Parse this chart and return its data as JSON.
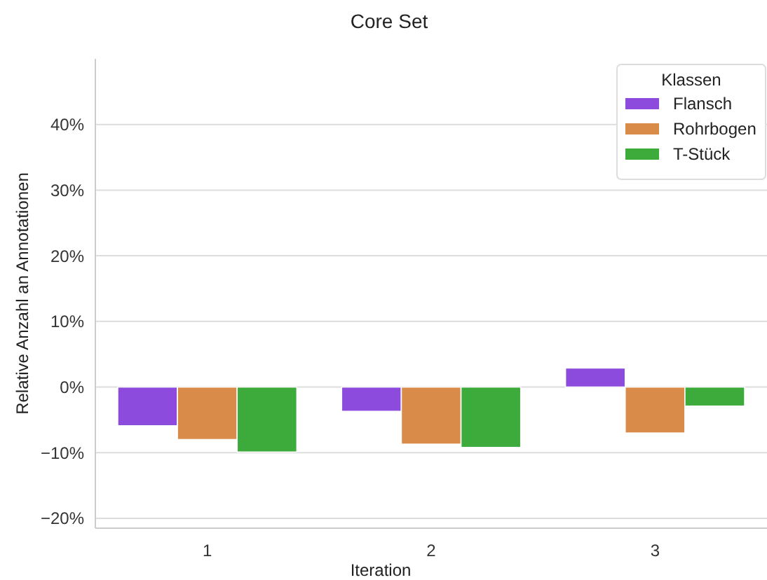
{
  "chart_data": {
    "type": "bar",
    "title": "Core Set",
    "xlabel": "Iteration",
    "ylabel": "Relative Anzahl an Annotationen",
    "legend_title": "Klassen",
    "categories": [
      "1",
      "2",
      "3"
    ],
    "series": [
      {
        "name": "Flansch",
        "color": "#8c4bdc",
        "values": [
          -5.9,
          -3.7,
          2.9
        ]
      },
      {
        "name": "Rohrbogen",
        "color": "#d98b4a",
        "values": [
          -8.0,
          -8.7,
          -7.0
        ]
      },
      {
        "name": "T-Stück",
        "color": "#3cab3c",
        "values": [
          -9.9,
          -9.2,
          -2.9
        ]
      }
    ],
    "ylim": [
      -21.5,
      50
    ],
    "yticks": [
      {
        "value": -20,
        "label": "−20%"
      },
      {
        "value": -10,
        "label": "−10%"
      },
      {
        "value": 0,
        "label": "0%"
      },
      {
        "value": 10,
        "label": "10%"
      },
      {
        "value": 20,
        "label": "20%"
      },
      {
        "value": 30,
        "label": "30%"
      },
      {
        "value": 40,
        "label": "40%"
      }
    ],
    "grid": "y",
    "legend": "top right"
  }
}
